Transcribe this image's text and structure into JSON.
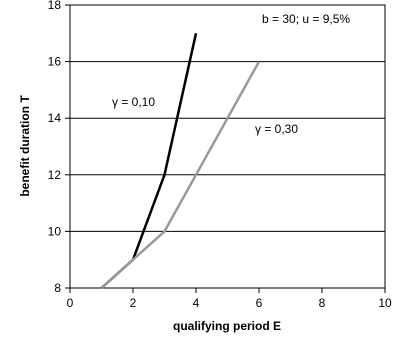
{
  "chart_data": {
    "type": "line",
    "xlabel": "qualifying period E",
    "ylabel": "benefit duration T",
    "xlim": [
      0,
      10
    ],
    "ylim": [
      8,
      18
    ],
    "xticks": [
      0,
      2,
      4,
      6,
      8,
      10
    ],
    "yticks": [
      8,
      10,
      12,
      14,
      16,
      18
    ],
    "grid": "horizontal",
    "legend": "none",
    "parameters_label": "b = 30; u = 9,5%",
    "series": [
      {
        "name": "γ = 0,10",
        "color": "#000000",
        "points": [
          [
            1,
            8
          ],
          [
            2,
            9
          ],
          [
            3,
            12
          ],
          [
            4,
            17
          ]
        ]
      },
      {
        "name": "γ = 0,30",
        "color": "#999999",
        "points": [
          [
            1,
            8
          ],
          [
            2,
            9
          ],
          [
            3,
            10
          ],
          [
            4,
            12
          ],
          [
            5,
            14
          ],
          [
            6,
            16
          ]
        ]
      }
    ]
  }
}
